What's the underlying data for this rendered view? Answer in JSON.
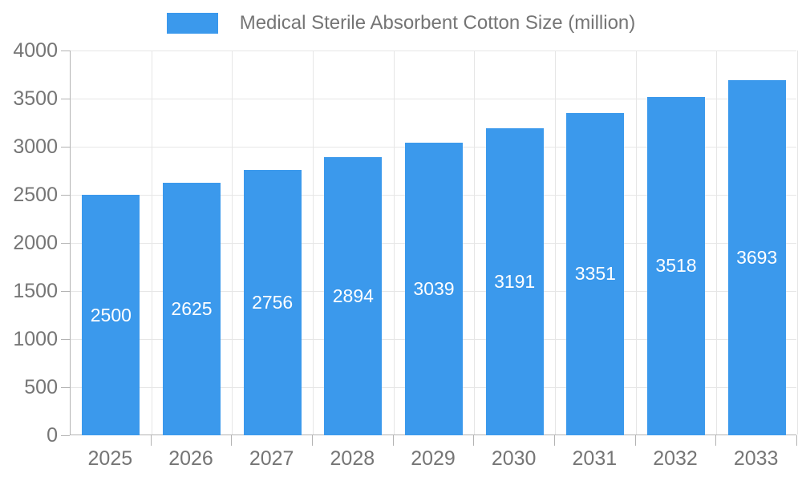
{
  "chart_data": {
    "type": "bar",
    "title": "",
    "legend_entries": [
      "Medical Sterile Absorbent Cotton Size (million)"
    ],
    "legend_position": "top-center",
    "categories": [
      "2025",
      "2026",
      "2027",
      "2028",
      "2029",
      "2030",
      "2031",
      "2032",
      "2033"
    ],
    "series": [
      {
        "name": "Medical Sterile Absorbent Cotton Size (million)",
        "values": [
          2500,
          2625,
          2756,
          2894,
          3039,
          3191,
          3351,
          3518,
          3693
        ]
      }
    ],
    "xlabel": "",
    "ylabel": "",
    "ylim": [
      0,
      4000
    ],
    "ytick_step": 500,
    "ytick_labels": [
      "0",
      "500",
      "1000",
      "1500",
      "2000",
      "2500",
      "3000",
      "3500",
      "4000"
    ],
    "grid": true,
    "value_labels": "inside-center"
  },
  "colors": {
    "bar": "#3b99ec",
    "axis": "#b3b3b3",
    "grid": "#e6e6e6",
    "text": "#757575",
    "value_label": "#ffffff",
    "background": "#ffffff"
  }
}
